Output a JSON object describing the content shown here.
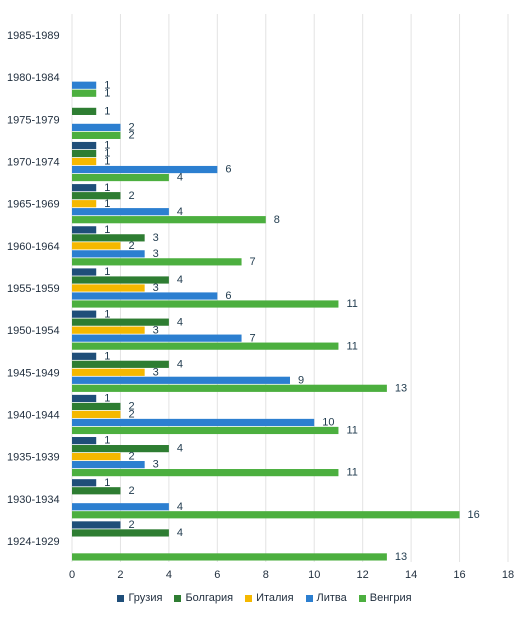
{
  "chart_data": {
    "type": "bar",
    "orientation": "horizontal",
    "categories": [
      "1924-1929",
      "1930-1934",
      "1935-1939",
      "1940-1944",
      "1945-1949",
      "1950-1954",
      "1955-1959",
      "1960-1964",
      "1965-1969",
      "1970-1974",
      "1975-1979",
      "1980-1984",
      "1985-1989"
    ],
    "series": [
      {
        "name": "Грузия",
        "color": "#1f4e79",
        "values": [
          2,
          1,
          1,
          1,
          1,
          1,
          1,
          1,
          1,
          1,
          null,
          null,
          null
        ]
      },
      {
        "name": "Болгария",
        "color": "#2e7d32",
        "values": [
          4,
          2,
          4,
          2,
          4,
          4,
          4,
          3,
          2,
          1,
          1,
          null,
          null
        ]
      },
      {
        "name": "Италия",
        "color": "#f5b800",
        "values": [
          null,
          null,
          2,
          2,
          3,
          3,
          3,
          2,
          1,
          1,
          null,
          null,
          null
        ]
      },
      {
        "name": "Литва",
        "color": "#2c7fd0",
        "values": [
          null,
          4,
          3,
          10,
          9,
          7,
          6,
          3,
          4,
          6,
          2,
          1,
          null
        ]
      },
      {
        "name": "Венгрия",
        "color": "#4caf3f",
        "values": [
          13,
          16,
          11,
          11,
          13,
          11,
          11,
          7,
          8,
          4,
          2,
          1,
          null
        ]
      }
    ],
    "xlim": [
      0,
      18
    ],
    "xticks": [
      0,
      2,
      4,
      6,
      8,
      10,
      12,
      14,
      16,
      18
    ],
    "grid": true,
    "legend_position": "bottom",
    "title": "",
    "xlabel": "",
    "ylabel": ""
  }
}
